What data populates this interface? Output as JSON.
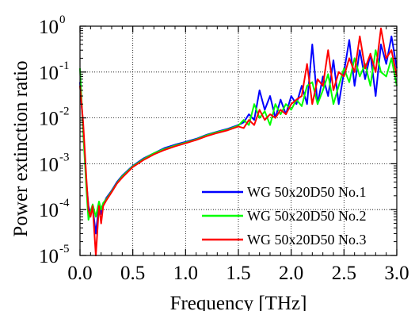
{
  "chart_data": {
    "type": "line",
    "xlabel": "Frequency [THz]",
    "ylabel": "Power extinction ratio",
    "xlim": [
      0.0,
      3.0
    ],
    "ylim": [
      1e-05,
      1
    ],
    "yscale": "log",
    "grid": true,
    "legend_position": "bottom-right",
    "x_ticks": [
      "0.0",
      "0.5",
      "1.0",
      "1.5",
      "2.0",
      "2.5",
      "3.0"
    ],
    "y_ticks": [
      {
        "base": "10",
        "exp": "-5"
      },
      {
        "base": "10",
        "exp": "-4"
      },
      {
        "base": "10",
        "exp": "-3"
      },
      {
        "base": "10",
        "exp": "-2"
      },
      {
        "base": "10",
        "exp": "-1"
      },
      {
        "base": "10",
        "exp": "0"
      }
    ],
    "series": [
      {
        "name": "WG 50x20D50 No.1",
        "color": "#0000ff",
        "x": [
          0.0,
          0.03,
          0.06,
          0.08,
          0.1,
          0.12,
          0.15,
          0.18,
          0.2,
          0.22,
          0.25,
          0.3,
          0.35,
          0.4,
          0.5,
          0.6,
          0.7,
          0.8,
          0.9,
          1.0,
          1.1,
          1.2,
          1.3,
          1.4,
          1.5,
          1.55,
          1.6,
          1.65,
          1.7,
          1.75,
          1.8,
          1.85,
          1.9,
          1.95,
          2.0,
          2.05,
          2.1,
          2.15,
          2.2,
          2.25,
          2.3,
          2.35,
          2.4,
          2.45,
          2.5,
          2.55,
          2.6,
          2.65,
          2.7,
          2.75,
          2.8,
          2.85,
          2.9,
          2.95,
          3.0
        ],
        "y": [
          0.06,
          0.006,
          0.0004,
          0.00012,
          8e-05,
          0.00011,
          3e-05,
          0.00013,
          8e-05,
          0.00013,
          0.00018,
          0.00026,
          0.0004,
          0.00055,
          0.0009,
          0.0013,
          0.0017,
          0.0022,
          0.0026,
          0.003,
          0.0035,
          0.0043,
          0.005,
          0.0058,
          0.007,
          0.008,
          0.012,
          0.009,
          0.04,
          0.015,
          0.03,
          0.01,
          0.025,
          0.012,
          0.03,
          0.02,
          0.05,
          0.02,
          0.4,
          0.02,
          0.08,
          0.03,
          0.18,
          0.02,
          0.1,
          0.5,
          0.05,
          0.3,
          0.07,
          0.25,
          0.03,
          0.4,
          0.15,
          0.6,
          0.12
        ]
      },
      {
        "name": "WG 50x20D50 No.2",
        "color": "#00ff00",
        "x": [
          0.0,
          0.03,
          0.06,
          0.08,
          0.1,
          0.12,
          0.15,
          0.18,
          0.2,
          0.22,
          0.25,
          0.3,
          0.35,
          0.4,
          0.5,
          0.6,
          0.7,
          0.8,
          0.9,
          1.0,
          1.1,
          1.2,
          1.3,
          1.4,
          1.5,
          1.55,
          1.6,
          1.65,
          1.7,
          1.75,
          1.8,
          1.85,
          1.9,
          1.95,
          2.0,
          2.05,
          2.1,
          2.15,
          2.2,
          2.25,
          2.3,
          2.35,
          2.4,
          2.45,
          2.5,
          2.55,
          2.6,
          2.65,
          2.7,
          2.75,
          2.8,
          2.85,
          2.9,
          2.95,
          3.0
        ],
        "y": [
          0.12,
          0.005,
          0.0003,
          6e-05,
          9e-05,
          0.00013,
          7e-05,
          0.00015,
          0.0001,
          0.00014,
          0.00017,
          0.00025,
          0.00038,
          0.00053,
          0.00088,
          0.00125,
          0.0017,
          0.0021,
          0.0025,
          0.0029,
          0.0034,
          0.0042,
          0.0049,
          0.0056,
          0.0068,
          0.009,
          0.007,
          0.02,
          0.01,
          0.014,
          0.007,
          0.02,
          0.012,
          0.02,
          0.015,
          0.025,
          0.018,
          0.05,
          0.06,
          0.02,
          0.04,
          0.09,
          0.02,
          0.05,
          0.12,
          0.06,
          0.2,
          0.08,
          0.15,
          0.05,
          0.3,
          0.1,
          0.08,
          0.2,
          0.05
        ]
      },
      {
        "name": "WG 50x20D50 No.3",
        "color": "#ff0000",
        "x": [
          0.0,
          0.03,
          0.06,
          0.08,
          0.1,
          0.12,
          0.15,
          0.18,
          0.2,
          0.22,
          0.25,
          0.3,
          0.35,
          0.4,
          0.5,
          0.6,
          0.7,
          0.8,
          0.9,
          1.0,
          1.1,
          1.2,
          1.3,
          1.4,
          1.5,
          1.55,
          1.6,
          1.65,
          1.7,
          1.75,
          1.8,
          1.85,
          1.9,
          1.95,
          2.0,
          2.05,
          2.1,
          2.15,
          2.2,
          2.25,
          2.3,
          2.35,
          2.4,
          2.45,
          2.5,
          2.55,
          2.6,
          2.65,
          2.7,
          2.75,
          2.8,
          2.85,
          2.9,
          2.95,
          3.0
        ],
        "y": [
          0.05,
          0.008,
          0.0005,
          0.0001,
          7e-05,
          0.00012,
          1e-05,
          0.00012,
          5e-05,
          0.00012,
          0.00016,
          0.00024,
          0.00037,
          0.0005,
          0.00085,
          0.0012,
          0.0016,
          0.002,
          0.0024,
          0.0028,
          0.0033,
          0.004,
          0.0047,
          0.0054,
          0.0065,
          0.006,
          0.009,
          0.007,
          0.015,
          0.009,
          0.012,
          0.01,
          0.015,
          0.012,
          0.02,
          0.025,
          0.03,
          0.15,
          0.02,
          0.07,
          0.05,
          0.3,
          0.04,
          0.1,
          0.08,
          0.2,
          0.1,
          0.6,
          0.12,
          0.25,
          0.1,
          0.9,
          0.2,
          0.3,
          0.08
        ]
      }
    ]
  }
}
